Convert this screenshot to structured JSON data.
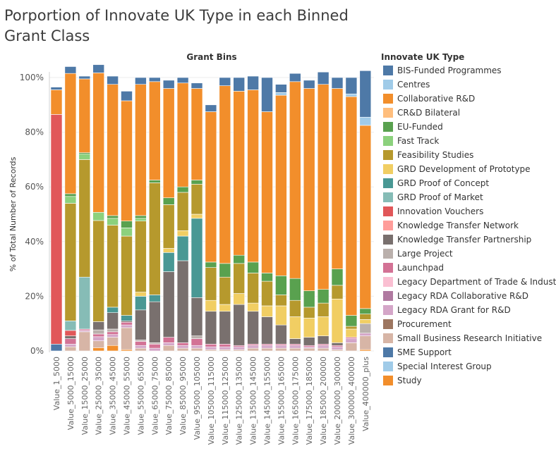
{
  "chart_data": {
    "type": "bar",
    "title": "Porportion of Innovate UK Type in each Binned Grant Class",
    "column_header": "Grant Bins",
    "ylabel": "% of Total Number of Records",
    "ylim": [
      0,
      100
    ],
    "yticks": [
      "0%",
      "20%",
      "40%",
      "60%",
      "80%",
      "100%"
    ],
    "legend_title": "Innovate UK Type",
    "legend_position": "right",
    "categories": [
      "Value_1_5000",
      "Value_5000_15000",
      "Value_15000_25000",
      "Value_25000_35000",
      "Value_35000_45000",
      "Value_45000_55000",
      "Value_55000_65000",
      "Value_65000_75000",
      "Value_75000_85000",
      "Value_85000_95000",
      "Value_95000_105000",
      "Value_105000_115000",
      "Value_115000_125000",
      "Value_125000_135000",
      "Value_135000_145000",
      "Value_145000_155000",
      "Value_155000_165000",
      "Value_165000_175000",
      "Value_175000_185000",
      "Value_185000_200000",
      "Value_200000_300000",
      "Value_300000_400000",
      "Value_400000_plus"
    ],
    "series": [
      {
        "name": "Study",
        "color": "#f28e2b",
        "values": [
          0,
          0,
          0,
          1.2,
          2,
          0.5,
          0,
          0,
          0,
          0,
          0,
          0,
          0,
          0,
          0,
          0,
          0,
          0,
          0,
          0,
          0,
          0,
          0.5
        ]
      },
      {
        "name": "Special Interest Group",
        "color": "#a0cbe8",
        "values": [
          0,
          0,
          0,
          0,
          0,
          0,
          0,
          0,
          0,
          0,
          0,
          0,
          0,
          0,
          0,
          0,
          0,
          0,
          0,
          0,
          0,
          0,
          0
        ]
      },
      {
        "name": "SME Support",
        "color": "#4e79a7",
        "values": [
          2.5,
          0,
          0,
          0,
          0,
          0,
          0,
          0,
          0,
          0,
          0,
          0,
          0,
          0,
          0,
          0,
          0,
          0,
          0,
          0,
          0,
          0,
          0
        ]
      },
      {
        "name": "Small Business Research Initiative",
        "color": "#d7b5a6",
        "values": [
          0,
          1.5,
          7,
          2.5,
          3,
          8,
          1,
          0,
          2,
          1,
          1,
          0.5,
          0.5,
          0.5,
          1,
          1,
          1,
          1,
          1,
          1,
          0.5,
          3,
          5
        ]
      },
      {
        "name": "Procurement",
        "color": "#9d7660",
        "values": [
          0,
          0,
          0,
          0,
          0,
          0,
          0,
          0,
          0,
          0,
          0,
          0,
          0,
          0,
          0,
          0,
          0,
          0,
          0,
          0,
          0,
          0,
          0
        ]
      },
      {
        "name": "Legacy RDA Grant for R&D",
        "color": "#d4a6c8",
        "values": [
          0,
          1,
          0.5,
          1.5,
          1,
          1,
          1,
          1,
          1,
          1,
          1,
          1,
          1,
          1,
          1,
          1,
          1,
          1,
          0.5,
          1,
          1,
          1.5,
          1
        ]
      },
      {
        "name": "Legacy RDA Collaborative R&D",
        "color": "#b07aa1",
        "values": [
          0,
          0,
          0,
          0,
          0,
          0,
          0,
          0,
          0,
          0,
          0,
          0,
          0,
          0,
          0,
          0,
          0,
          0,
          0,
          0,
          0,
          0,
          0
        ]
      },
      {
        "name": "Legacy Department of Trade & Industry",
        "color": "#fabfd2",
        "values": [
          0,
          0,
          0,
          0,
          0,
          0,
          0,
          0,
          0,
          0,
          0,
          0,
          0,
          0,
          0,
          0,
          0,
          0,
          0,
          0,
          0,
          0,
          0
        ]
      },
      {
        "name": "Launchpad",
        "color": "#d37295",
        "values": [
          0,
          2,
          0.5,
          1,
          1,
          1,
          1.5,
          1.5,
          2,
          1,
          2.5,
          1,
          1,
          0.5,
          0.5,
          0.5,
          0.5,
          0.5,
          0.5,
          0.5,
          0.5,
          0.5,
          0
        ]
      },
      {
        "name": "Large Project",
        "color": "#bab0ac",
        "values": [
          0,
          0,
          0,
          1.5,
          1,
          0,
          0.5,
          0.5,
          0,
          0,
          1,
          0,
          0,
          0,
          0,
          0,
          0,
          0,
          0,
          0,
          0,
          0,
          3.5
        ]
      },
      {
        "name": "Knowledge Transfer Partnership",
        "color": "#79706e",
        "values": [
          0,
          1,
          0,
          3,
          6,
          0.5,
          11,
          15,
          24,
          30,
          14,
          12,
          12,
          15,
          12,
          10,
          7,
          2,
          3,
          3,
          1,
          0,
          0
        ]
      },
      {
        "name": "Knowledge Transfer Network",
        "color": "#ff9d9a",
        "values": [
          0,
          0,
          0,
          0,
          0,
          0,
          0,
          0,
          0,
          0,
          0,
          0,
          0,
          0,
          0,
          0,
          0,
          0,
          0,
          0,
          0,
          0,
          0
        ]
      },
      {
        "name": "Innovation Vouchers",
        "color": "#e15759",
        "values": [
          84,
          2,
          0,
          0,
          0,
          0,
          0,
          0,
          0,
          0,
          0,
          0,
          0,
          0,
          0,
          0,
          0,
          0,
          0,
          0,
          0,
          0,
          0
        ]
      },
      {
        "name": "GRD Proof of Market",
        "color": "#86bcb6",
        "values": [
          0,
          3.5,
          19,
          0,
          0,
          0,
          0,
          0,
          0,
          0,
          0,
          0,
          0,
          0,
          0,
          0,
          0,
          0,
          0,
          0,
          0,
          0,
          0
        ]
      },
      {
        "name": "GRD Proof of Concept",
        "color": "#499894",
        "values": [
          0,
          0,
          0,
          0,
          2,
          2,
          5,
          2.5,
          7,
          9,
          29,
          0,
          0,
          0,
          0,
          0,
          0,
          0,
          0,
          0,
          0,
          0,
          0
        ]
      },
      {
        "name": "GRD Development of Prototype",
        "color": "#f1ce63",
        "values": [
          0,
          0,
          0,
          0,
          0,
          0,
          1.5,
          0,
          1.5,
          2,
          1.5,
          4,
          2.5,
          4,
          3,
          4,
          7,
          8,
          7,
          7,
          16,
          3,
          1.5
        ]
      },
      {
        "name": "Feasibility Studies",
        "color": "#b6992d",
        "values": [
          0,
          43,
          43,
          37,
          30,
          29,
          26,
          41,
          16,
          14,
          11,
          12,
          10,
          11,
          11,
          9,
          4,
          6,
          4,
          5,
          5,
          1,
          2
        ]
      },
      {
        "name": "Fast Track",
        "color": "#8cd17d",
        "values": [
          0,
          2.5,
          2,
          3,
          2.5,
          3,
          1,
          0,
          0,
          0,
          0,
          0,
          0,
          0,
          0,
          0,
          0,
          0,
          0,
          0,
          0,
          0,
          0
        ]
      },
      {
        "name": "EU-Funded",
        "color": "#59a14f",
        "values": [
          0,
          1,
          0.5,
          0,
          1,
          2.5,
          1,
          1,
          2.5,
          2,
          1.5,
          2,
          5,
          3,
          4,
          3,
          7,
          8,
          6,
          5,
          6,
          4,
          2
        ]
      },
      {
        "name": "CR&D Bilateral",
        "color": "#ffbe7d",
        "values": [
          0,
          0,
          0,
          0,
          0,
          0,
          0,
          0,
          0,
          0,
          0,
          0,
          0,
          0,
          0,
          0,
          0,
          0,
          0,
          0,
          0,
          0,
          0
        ]
      },
      {
        "name": "Collaborative R&D",
        "color": "#f28e2b",
        "values": [
          9,
          44,
          27,
          51,
          48,
          44,
          48,
          36,
          40,
          38,
          33.5,
          55,
          65,
          60,
          63,
          59,
          66,
          72,
          74,
          75,
          66,
          80,
          67
        ]
      },
      {
        "name": "Centres",
        "color": "#a0cbe8",
        "values": [
          0,
          0,
          0,
          0,
          0,
          0,
          0,
          0,
          0,
          0,
          0,
          0,
          0,
          0,
          0,
          0,
          1,
          0,
          0,
          0,
          0,
          1,
          3
        ]
      },
      {
        "name": "BIS-Funded Programmes",
        "color": "#4e79a7",
        "values": [
          1,
          2.5,
          1,
          3,
          3,
          3.5,
          2.5,
          1.5,
          3,
          2,
          2,
          2.5,
          3,
          5,
          5,
          12.5,
          3,
          3,
          3,
          4.5,
          4,
          6,
          17
        ]
      }
    ]
  },
  "legend": {
    "title": "Innovate UK Type",
    "items": [
      {
        "label": "BIS-Funded Programmes",
        "color": "#4e79a7"
      },
      {
        "label": "Centres",
        "color": "#a0cbe8"
      },
      {
        "label": "Collaborative R&D",
        "color": "#f28e2b"
      },
      {
        "label": "CR&D Bilateral",
        "color": "#ffbe7d"
      },
      {
        "label": "EU-Funded",
        "color": "#59a14f"
      },
      {
        "label": "Fast Track",
        "color": "#8cd17d"
      },
      {
        "label": "Feasibility Studies",
        "color": "#b6992d"
      },
      {
        "label": "GRD Development of Prototype",
        "color": "#f1ce63"
      },
      {
        "label": "GRD Proof of Concept",
        "color": "#499894"
      },
      {
        "label": "GRD Proof of Market",
        "color": "#86bcb6"
      },
      {
        "label": "Innovation Vouchers",
        "color": "#e15759"
      },
      {
        "label": "Knowledge Transfer Network",
        "color": "#ff9d9a"
      },
      {
        "label": "Knowledge Transfer Partnership",
        "color": "#79706e"
      },
      {
        "label": "Large Project",
        "color": "#bab0ac"
      },
      {
        "label": "Launchpad",
        "color": "#d37295"
      },
      {
        "label": "Legacy Department of Trade & Industry",
        "color": "#fabfd2"
      },
      {
        "label": "Legacy RDA Collaborative R&D",
        "color": "#b07aa1"
      },
      {
        "label": "Legacy RDA Grant for R&D",
        "color": "#d4a6c8"
      },
      {
        "label": "Procurement",
        "color": "#9d7660"
      },
      {
        "label": "Small Business Research Initiative",
        "color": "#d7b5a6"
      },
      {
        "label": "SME Support",
        "color": "#4e79a7"
      },
      {
        "label": "Special Interest Group",
        "color": "#a0cbe8"
      },
      {
        "label": "Study",
        "color": "#f28e2b"
      }
    ]
  }
}
